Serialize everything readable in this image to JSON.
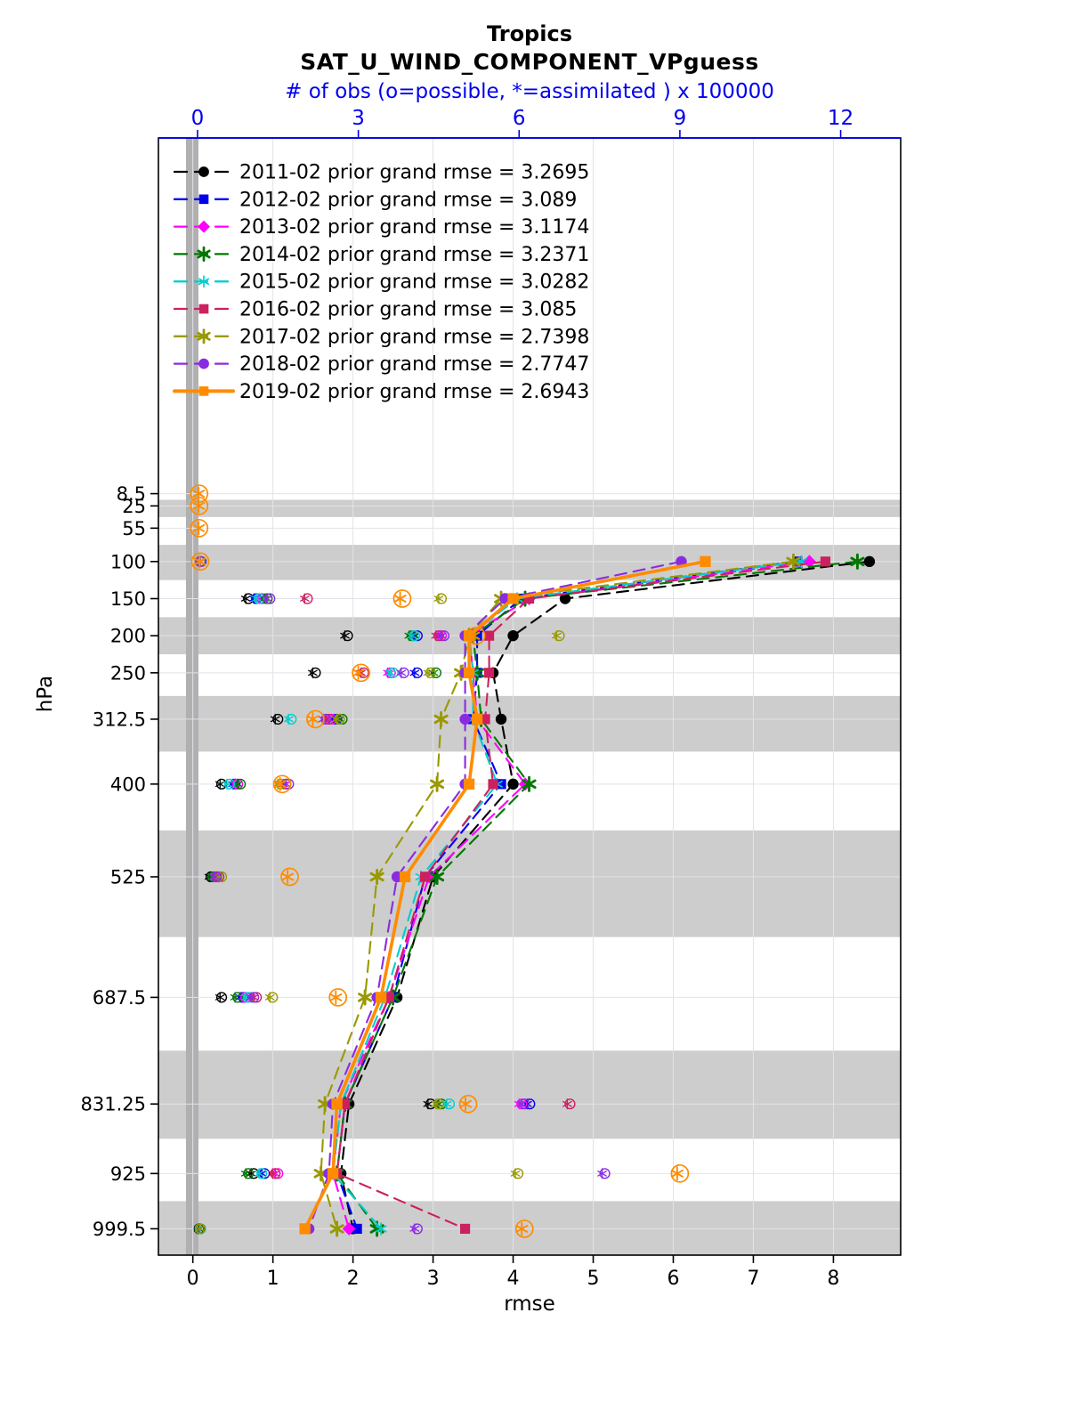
{
  "chart_data": {
    "type": "line",
    "title": "Tropics",
    "subtitle": "SAT_U_WIND_COMPONENT_VPguess",
    "axes": {
      "top": {
        "label": "# of obs (o=possible, *=assimilated ) x 100000",
        "ticks": [
          0,
          3,
          6,
          9,
          12
        ],
        "range": [
          -0.73,
          13.12
        ],
        "color": "#0000ee"
      },
      "bottom": {
        "label": "rmse",
        "ticks": [
          0,
          1,
          2,
          3,
          4,
          5,
          6,
          7,
          8
        ],
        "range": [
          -0.43,
          8.84
        ]
      },
      "left": {
        "label": "hPa",
        "range": [
          1035,
          -471
        ],
        "levels": [
          8.5,
          25,
          55,
          100,
          150,
          200,
          250,
          312.5,
          400,
          525,
          687.5,
          831.25,
          925,
          999.5
        ],
        "labels": [
          "8.5",
          "25",
          "55",
          "100",
          "150",
          "200",
          "250",
          "312.5",
          "400",
          "525",
          "687.5",
          "831.25",
          "925",
          "999.5"
        ]
      }
    },
    "shaded_levels": [
      25,
      100,
      200,
      312.5,
      525,
      831.25,
      999.5
    ],
    "colors": {
      "band": "#cdcdcd",
      "zero_band": "#b0b0b0",
      "grid": "#e2e2ea",
      "frame": "#000000"
    },
    "levels_rmse": [
      100,
      150,
      200,
      250,
      312.5,
      400,
      525,
      687.5,
      831.25,
      925,
      999.5
    ],
    "series": [
      {
        "name": "2011-02",
        "legend_label": "2011-02 prior grand rmse = 3.2695",
        "grand_rmse": 3.2695,
        "color": "#000000",
        "marker": "circle",
        "line": "dashed",
        "rmse": [
          8.45,
          4.65,
          4.0,
          3.75,
          3.85,
          4.0,
          3.0,
          2.55,
          1.95,
          1.85,
          2.0
        ],
        "obs_possible": [
          null,
          null,
          null,
          0.05,
          0.95,
          2.8,
          2.2,
          1.5,
          0.45,
          0.25,
          0.45,
          4.35,
          1.05,
          0.03
        ],
        "obs_assimilated": [
          null,
          null,
          null,
          0.04,
          0.9,
          2.75,
          2.15,
          1.45,
          0.42,
          0.22,
          0.42,
          4.3,
          1.0,
          0.02
        ]
      },
      {
        "name": "2012-02",
        "legend_label": "2012-02 prior grand rmse = 3.089",
        "grand_rmse": 3.089,
        "color": "#0000ee",
        "marker": "square",
        "line": "dashed",
        "rmse": [
          7.55,
          4.1,
          3.55,
          3.55,
          3.5,
          3.85,
          2.9,
          2.5,
          1.9,
          1.8,
          2.05
        ],
        "obs_possible": [
          null,
          null,
          null,
          0.07,
          1.1,
          4.1,
          4.1,
          2.6,
          0.7,
          0.4,
          0.85,
          6.2,
          1.25,
          0.04
        ],
        "obs_assimilated": [
          null,
          null,
          null,
          0.05,
          1.05,
          4.05,
          4.05,
          2.55,
          0.66,
          0.36,
          0.8,
          6.15,
          1.2,
          0.03
        ]
      },
      {
        "name": "2013-02",
        "legend_label": "2013-02 prior grand rmse = 3.1174",
        "grand_rmse": 3.1174,
        "color": "#ff00ff",
        "marker": "diamond",
        "line": "dashed",
        "rmse": [
          7.7,
          4.2,
          3.45,
          3.5,
          3.55,
          4.15,
          2.95,
          2.45,
          1.85,
          1.75,
          1.95
        ],
        "obs_possible": [
          null,
          null,
          null,
          0.06,
          1.2,
          4.55,
          3.6,
          2.5,
          0.75,
          0.35,
          0.9,
          6.05,
          1.5,
          0.05
        ],
        "obs_assimilated": [
          null,
          null,
          null,
          0.05,
          1.15,
          4.5,
          3.55,
          2.45,
          0.7,
          0.32,
          0.85,
          6.0,
          1.45,
          0.04
        ]
      },
      {
        "name": "2014-02",
        "legend_label": "2014-02 prior grand rmse = 3.2371",
        "grand_rmse": 3.2371,
        "color": "#007700",
        "marker": "star",
        "line": "dashed",
        "rmse": [
          8.3,
          4.15,
          3.5,
          3.55,
          3.6,
          4.2,
          3.05,
          2.5,
          1.9,
          1.8,
          2.3
        ],
        "obs_possible": [
          null,
          null,
          null,
          0.05,
          1.3,
          4.0,
          4.45,
          2.7,
          0.8,
          0.3,
          0.75,
          4.55,
          0.95,
          0.04
        ],
        "obs_assimilated": [
          null,
          null,
          null,
          0.04,
          1.25,
          3.95,
          4.4,
          2.65,
          0.75,
          0.27,
          0.7,
          4.5,
          0.9,
          0.03
        ]
      },
      {
        "name": "2015-02",
        "legend_label": "2015-02 prior grand rmse = 3.0282",
        "grand_rmse": 3.0282,
        "color": "#00cdcd",
        "marker": "asterisk",
        "line": "dashed",
        "rmse": [
          7.6,
          4.05,
          3.45,
          3.5,
          3.5,
          3.8,
          2.85,
          2.4,
          1.85,
          1.75,
          2.35
        ],
        "obs_possible": [
          null,
          null,
          null,
          0.06,
          1.15,
          4.05,
          3.65,
          1.75,
          0.6,
          0.35,
          0.95,
          4.7,
          1.2,
          0.06
        ],
        "obs_assimilated": [
          null,
          null,
          null,
          0.05,
          1.1,
          4.0,
          3.6,
          1.7,
          0.55,
          0.32,
          0.9,
          4.65,
          1.15,
          0.05
        ]
      },
      {
        "name": "2016-02",
        "legend_label": "2016-02 prior grand rmse = 3.085",
        "grand_rmse": 3.085,
        "color": "#cc2060",
        "marker": "square",
        "line": "dashed",
        "rmse": [
          7.9,
          4.2,
          3.7,
          3.7,
          3.65,
          3.75,
          2.9,
          2.45,
          1.9,
          1.8,
          3.4
        ],
        "obs_possible": [
          null,
          null,
          null,
          0.05,
          2.05,
          4.5,
          3.1,
          2.45,
          1.65,
          0.4,
          1.1,
          6.95,
          1.45,
          0.05
        ],
        "obs_assimilated": [
          null,
          null,
          null,
          0.04,
          2.0,
          4.45,
          3.05,
          2.4,
          1.6,
          0.36,
          1.05,
          6.9,
          1.4,
          0.04
        ]
      },
      {
        "name": "2017-02",
        "legend_label": "2017-02 prior grand rmse = 2.7398",
        "grand_rmse": 2.7398,
        "color": "#999900",
        "marker": "star",
        "line": "dashed",
        "rmse": [
          7.5,
          3.85,
          3.45,
          3.35,
          3.1,
          3.05,
          2.3,
          2.15,
          1.65,
          1.6,
          1.8
        ],
        "obs_possible": [
          null,
          null,
          null,
          0.05,
          4.55,
          6.75,
          4.35,
          2.65,
          1.55,
          0.45,
          1.4,
          4.5,
          5.98,
          0.05
        ],
        "obs_assimilated": [
          null,
          null,
          null,
          0.04,
          4.5,
          6.7,
          4.3,
          2.6,
          1.5,
          0.4,
          1.35,
          4.45,
          5.93,
          0.04
        ]
      },
      {
        "name": "2018-02",
        "legend_label": "2018-02 prior grand rmse = 2.7747",
        "grand_rmse": 2.7747,
        "color": "#8a2be2",
        "marker": "circle",
        "line": "dashed",
        "rmse": [
          6.1,
          3.9,
          3.4,
          3.4,
          3.4,
          3.4,
          2.55,
          2.3,
          1.75,
          1.7,
          1.45
        ],
        "obs_possible": [
          null,
          null,
          null,
          0.06,
          1.35,
          4.6,
          3.85,
          2.4,
          1.7,
          0.35,
          1.05,
          6.1,
          7.6,
          4.1
        ],
        "obs_assimilated": [
          null,
          null,
          null,
          0.05,
          1.3,
          4.55,
          3.8,
          2.35,
          1.65,
          0.32,
          1.0,
          6.05,
          7.55,
          4.05
        ]
      },
      {
        "name": "2019-02",
        "legend_label": "2019-02 prior grand rmse = 2.6943",
        "grand_rmse": 2.6943,
        "color": "#ff8c00",
        "marker": "square",
        "line": "solid",
        "rmse": [
          6.4,
          4.0,
          3.45,
          3.45,
          3.55,
          3.45,
          2.65,
          2.35,
          1.8,
          1.75,
          1.4
        ],
        "obs_possible": [
          0.03,
          0.03,
          0.03,
          0.05,
          3.82,
          5.2,
          3.05,
          2.2,
          1.58,
          1.72,
          2.62,
          5.05,
          9.0,
          6.1
        ],
        "obs_assimilated": [
          0.02,
          0.02,
          0.02,
          0.04,
          3.78,
          5.15,
          3.0,
          2.15,
          1.54,
          1.68,
          2.58,
          5.0,
          8.95,
          6.05
        ]
      }
    ]
  }
}
